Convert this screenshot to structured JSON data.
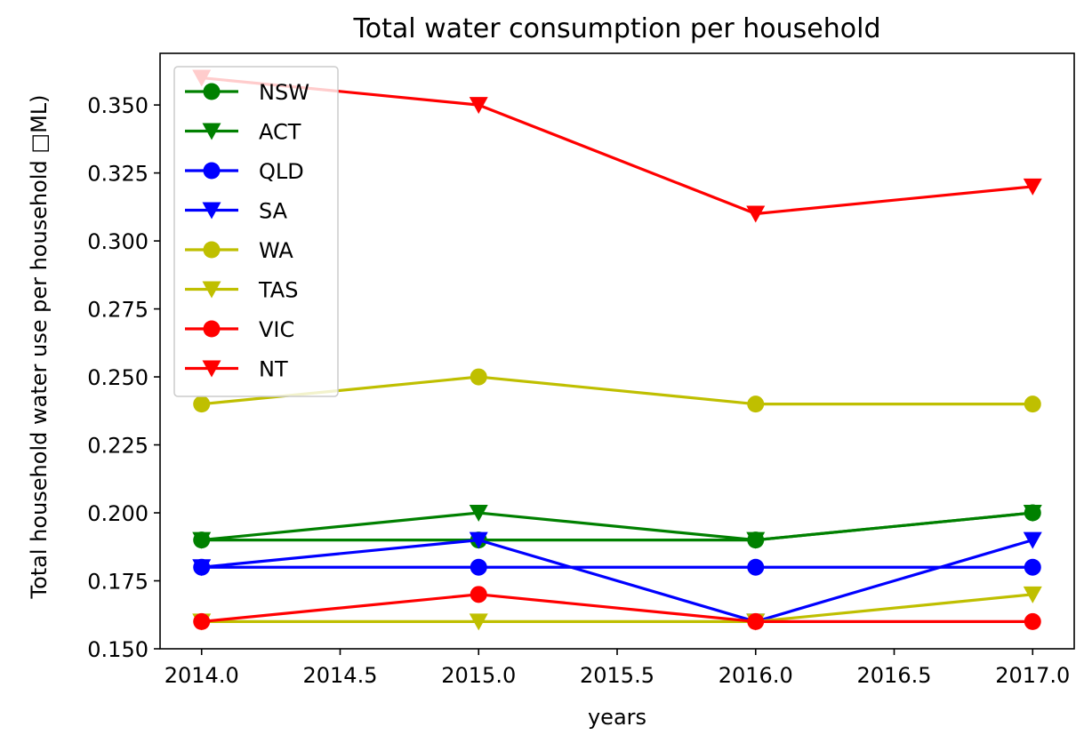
{
  "chart_data": {
    "type": "line",
    "title": "Total water consumption per household",
    "xlabel": "years",
    "ylabel": "Total household water use per household □ML)",
    "x": [
      2014,
      2015,
      2016,
      2017
    ],
    "xlim": [
      2013.85,
      2017.15
    ],
    "ylim": [
      0.15,
      0.369
    ],
    "xticks": [
      2014.0,
      2014.5,
      2015.0,
      2015.5,
      2016.0,
      2016.5,
      2017.0
    ],
    "xtick_labels": [
      "2014.0",
      "2014.5",
      "2015.0",
      "2015.5",
      "2016.0",
      "2016.5",
      "2017.0"
    ],
    "yticks": [
      0.15,
      0.175,
      0.2,
      0.225,
      0.25,
      0.275,
      0.3,
      0.325,
      0.35
    ],
    "ytick_labels": [
      "0.150",
      "0.175",
      "0.200",
      "0.225",
      "0.250",
      "0.275",
      "0.300",
      "0.325",
      "0.350"
    ],
    "grid": false,
    "legend_position": "top-left",
    "series": [
      {
        "name": "NSW",
        "values": [
          0.19,
          0.19,
          0.19,
          0.2
        ],
        "color": "#008000",
        "marker": "circle"
      },
      {
        "name": "ACT",
        "values": [
          0.19,
          0.2,
          0.19,
          0.2
        ],
        "color": "#008000",
        "marker": "triangle-down"
      },
      {
        "name": "QLD",
        "values": [
          0.18,
          0.18,
          0.18,
          0.18
        ],
        "color": "#0000ff",
        "marker": "circle"
      },
      {
        "name": "SA",
        "values": [
          0.18,
          0.19,
          0.16,
          0.19
        ],
        "color": "#0000ff",
        "marker": "triangle-down"
      },
      {
        "name": "WA",
        "values": [
          0.24,
          0.25,
          0.24,
          0.24
        ],
        "color": "#bfbf00",
        "marker": "circle"
      },
      {
        "name": "TAS",
        "values": [
          0.16,
          0.16,
          0.16,
          0.17
        ],
        "color": "#bfbf00",
        "marker": "triangle-down"
      },
      {
        "name": "VIC",
        "values": [
          0.16,
          0.17,
          0.16,
          0.16
        ],
        "color": "#ff0000",
        "marker": "circle"
      },
      {
        "name": "NT",
        "values": [
          0.36,
          0.35,
          0.31,
          0.32
        ],
        "color": "#ff0000",
        "marker": "triangle-down"
      }
    ]
  }
}
